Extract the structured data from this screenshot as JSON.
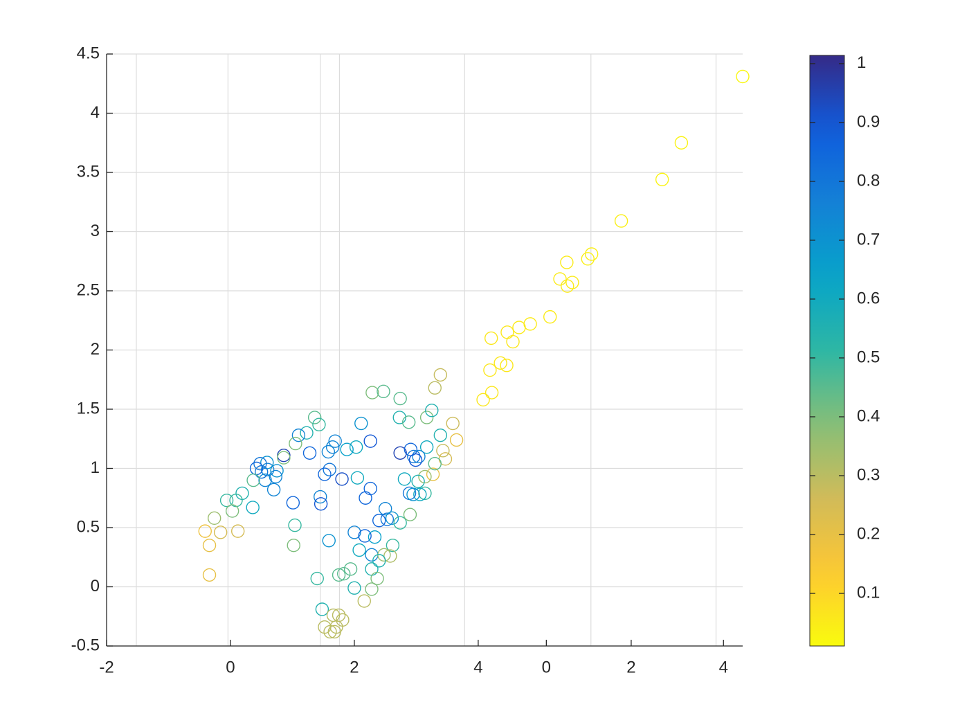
{
  "chart_data": {
    "type": "scatter",
    "x": [
      8.27,
      7.28,
      6.97,
      6.31,
      5.83,
      5.77,
      5.43,
      5.32,
      5.52,
      5.44,
      5.16,
      4.84,
      4.66,
      4.47,
      4.56,
      4.21,
      4.36,
      4.46,
      4.19,
      4.22,
      4.08,
      3.39,
      3.3,
      3.59,
      3.65,
      3.43,
      3.47,
      3.27,
      3.14,
      2.29,
      2.47,
      2.74,
      2.73,
      2.88,
      3.17,
      3.25,
      3.39,
      3.17,
      3.3,
      3.03,
      3.14,
      3.06,
      2.11,
      2.26,
      2.03,
      1.88,
      1.69,
      1.65,
      1.58,
      2.74,
      2.91,
      2.96,
      3.04,
      2.99,
      2.81,
      2.89,
      2.95,
      1.6,
      1.52,
      1.8,
      2.05,
      2.26,
      2.18,
      2.5,
      2.4,
      2.53,
      2.61,
      2.74,
      2.9,
      2.0,
      2.17,
      2.33,
      2.62,
      2.08,
      2.28,
      2.48,
      2.58,
      2.4,
      2.28,
      1.94,
      1.83,
      1.75,
      2.37,
      2.0,
      2.28,
      2.16,
      1.59,
      1.4,
      1.48,
      1.66,
      1.75,
      1.81,
      1.52,
      1.61,
      1.68,
      1.71,
      1.36,
      1.43,
      1.23,
      1.1,
      1.28,
      1.05,
      0.86,
      0.86,
      0.75,
      0.73,
      0.6,
      0.59,
      0.48,
      0.42,
      0.5,
      0.56,
      0.37,
      0.7,
      0.19,
      0.09,
      -0.06,
      0.03,
      0.36,
      1.01,
      1.45,
      1.46,
      1.04,
      1.02,
      -0.26,
      -0.41,
      -0.16,
      0.12,
      -0.34,
      -0.34
    ],
    "y": [
      4.31,
      3.75,
      3.44,
      3.09,
      2.81,
      2.77,
      2.74,
      2.6,
      2.57,
      2.54,
      2.28,
      2.22,
      2.19,
      2.15,
      2.07,
      2.1,
      1.89,
      1.87,
      1.83,
      1.64,
      1.58,
      1.79,
      1.68,
      1.38,
      1.24,
      1.15,
      1.08,
      0.95,
      0.93,
      1.64,
      1.65,
      1.59,
      1.43,
      1.39,
      1.43,
      1.49,
      1.28,
      1.18,
      1.04,
      0.89,
      0.79,
      0.78,
      1.38,
      1.23,
      1.18,
      1.16,
      1.23,
      1.18,
      1.14,
      1.13,
      1.16,
      1.1,
      1.1,
      1.07,
      0.91,
      0.79,
      0.78,
      0.99,
      0.95,
      0.91,
      0.92,
      0.83,
      0.75,
      0.66,
      0.56,
      0.57,
      0.58,
      0.54,
      0.61,
      0.46,
      0.43,
      0.42,
      0.35,
      0.31,
      0.27,
      0.27,
      0.26,
      0.22,
      0.15,
      0.15,
      0.11,
      0.1,
      0.07,
      -0.01,
      -0.02,
      -0.12,
      0.39,
      0.07,
      -0.19,
      -0.24,
      -0.24,
      -0.28,
      -0.34,
      -0.38,
      -0.38,
      -0.34,
      1.43,
      1.37,
      1.3,
      1.28,
      1.13,
      1.21,
      1.11,
      1.09,
      0.98,
      0.93,
      0.99,
      1.05,
      1.04,
      1.0,
      0.97,
      0.9,
      0.9,
      0.82,
      0.79,
      0.73,
      0.73,
      0.64,
      0.67,
      0.71,
      0.76,
      0.7,
      0.52,
      0.35,
      0.58,
      0.47,
      0.46,
      0.47,
      0.35,
      0.1
    ],
    "color_values": [
      0.02,
      0.03,
      0.03,
      0.04,
      0.04,
      0.04,
      0.05,
      0.05,
      0.05,
      0.05,
      0.05,
      0.05,
      0.05,
      0.06,
      0.06,
      0.06,
      0.06,
      0.06,
      0.06,
      0.06,
      0.06,
      0.28,
      0.3,
      0.27,
      0.2,
      0.28,
      0.25,
      0.2,
      0.35,
      0.4,
      0.45,
      0.45,
      0.55,
      0.45,
      0.4,
      0.55,
      0.55,
      0.6,
      0.45,
      0.55,
      0.5,
      0.6,
      0.7,
      0.9,
      0.6,
      0.65,
      0.75,
      0.75,
      0.75,
      0.95,
      0.85,
      0.8,
      0.75,
      0.9,
      0.6,
      0.8,
      0.7,
      0.8,
      0.85,
      0.92,
      0.6,
      0.85,
      0.85,
      0.75,
      0.85,
      0.8,
      0.7,
      0.5,
      0.4,
      0.75,
      0.85,
      0.65,
      0.5,
      0.6,
      0.75,
      0.35,
      0.32,
      0.55,
      0.55,
      0.45,
      0.45,
      0.45,
      0.4,
      0.55,
      0.4,
      0.3,
      0.7,
      0.5,
      0.55,
      0.3,
      0.3,
      0.3,
      0.3,
      0.3,
      0.3,
      0.3,
      0.45,
      0.5,
      0.55,
      0.75,
      0.85,
      0.4,
      0.95,
      0.4,
      0.7,
      0.75,
      0.75,
      0.7,
      0.8,
      0.85,
      0.8,
      0.75,
      0.45,
      0.75,
      0.55,
      0.5,
      0.5,
      0.4,
      0.6,
      0.85,
      0.75,
      0.9,
      0.5,
      0.4,
      0.35,
      0.18,
      0.25,
      0.25,
      0.2,
      0.2
    ],
    "xlim": [
      -2,
      8.27
    ],
    "xticks": [
      -2,
      0,
      2,
      4,
      {
        "value": 5.1,
        "label": "0"
      },
      {
        "value": 6.47,
        "label": "2"
      },
      {
        "value": 7.96,
        "label": "4"
      }
    ],
    "xgrid": [
      -1.52,
      -0.04,
      1.45,
      1.76,
      3.78,
      5.82,
      7.84
    ],
    "ylim": [
      -0.5,
      4.5
    ],
    "yticks": [
      -0.5,
      0,
      0.5,
      1,
      1.5,
      2,
      2.5,
      3,
      3.5,
      4,
      4.5
    ],
    "grid": true,
    "colormap": "parula",
    "colormap_reversed": true,
    "clim": [
      0.0106,
      1.014
    ],
    "colorbar_ticks": [
      0.1,
      0.2,
      0.3,
      0.4,
      0.5,
      0.6,
      0.7,
      0.8,
      0.9,
      1
    ]
  }
}
